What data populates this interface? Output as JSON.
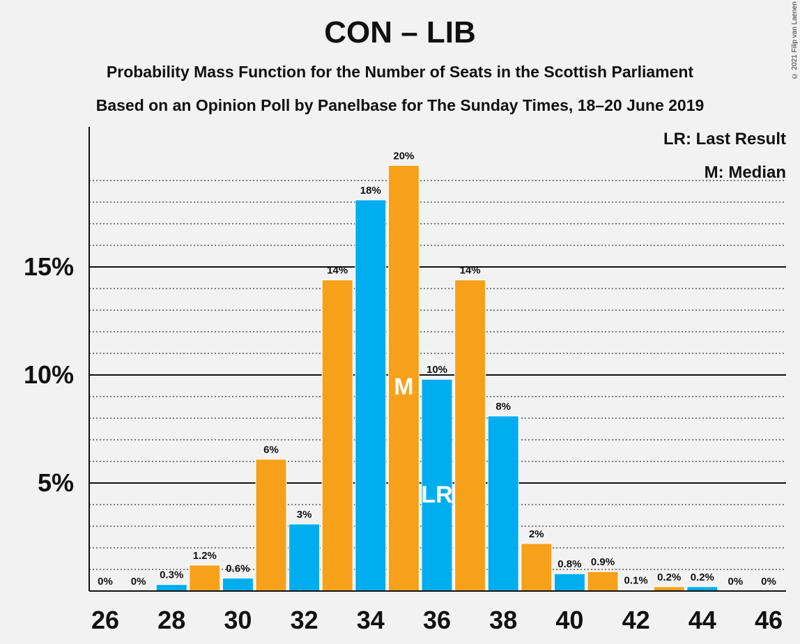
{
  "title": "CON – LIB",
  "subtitle1": "Probability Mass Function for the Number of Seats in the Scottish Parliament",
  "subtitle2": "Based on an Opinion Poll by Panelbase for The Sunday Times, 18–20 June 2019",
  "copyright": "© 2021 Filip van Laenen",
  "legend": {
    "lr": "LR: Last Result",
    "m": "M: Median"
  },
  "colors": {
    "orange": "#f7a11a",
    "blue": "#00aeef",
    "axis": "#111111",
    "background": "#f2f2f2"
  },
  "chart_data": {
    "type": "bar",
    "x": [
      26,
      27,
      28,
      29,
      30,
      31,
      32,
      33,
      34,
      35,
      36,
      37,
      38,
      39,
      40,
      41,
      42,
      43,
      44,
      45,
      46
    ],
    "values": [
      0,
      0,
      0.3,
      1.2,
      0.6,
      6.1,
      3.1,
      14.4,
      18.1,
      19.7,
      9.8,
      14.4,
      8.1,
      2.2,
      0.8,
      0.9,
      0.05,
      0.2,
      0.2,
      0,
      0
    ],
    "labels": [
      "0%",
      "0%",
      "0.3%",
      "1.2%",
      "0.6%",
      "6%",
      "3%",
      "14%",
      "18%",
      "20%",
      "10%",
      "14%",
      "8%",
      "2%",
      "0.8%",
      "0.9%",
      "0.1%",
      "0.2%",
      "0.2%",
      "0%",
      "0%"
    ],
    "bar_colors": [
      "blue",
      "orange",
      "blue",
      "orange",
      "blue",
      "orange",
      "blue",
      "orange",
      "blue",
      "orange",
      "blue",
      "orange",
      "blue",
      "orange",
      "blue",
      "orange",
      "blue",
      "orange",
      "blue",
      "orange",
      "blue"
    ],
    "x_ticks": [
      26,
      28,
      30,
      32,
      34,
      36,
      38,
      40,
      42,
      44,
      46
    ],
    "y_ticks": [
      5,
      10,
      15
    ],
    "y_tick_labels": [
      "5%",
      "10%",
      "15%"
    ],
    "ylim": [
      0,
      21.5
    ],
    "median_seat": 35,
    "median_label": "M",
    "last_result_seat": 36,
    "last_result_label": "LR",
    "grid": "dotted minor every 1%, solid major every 5%"
  }
}
